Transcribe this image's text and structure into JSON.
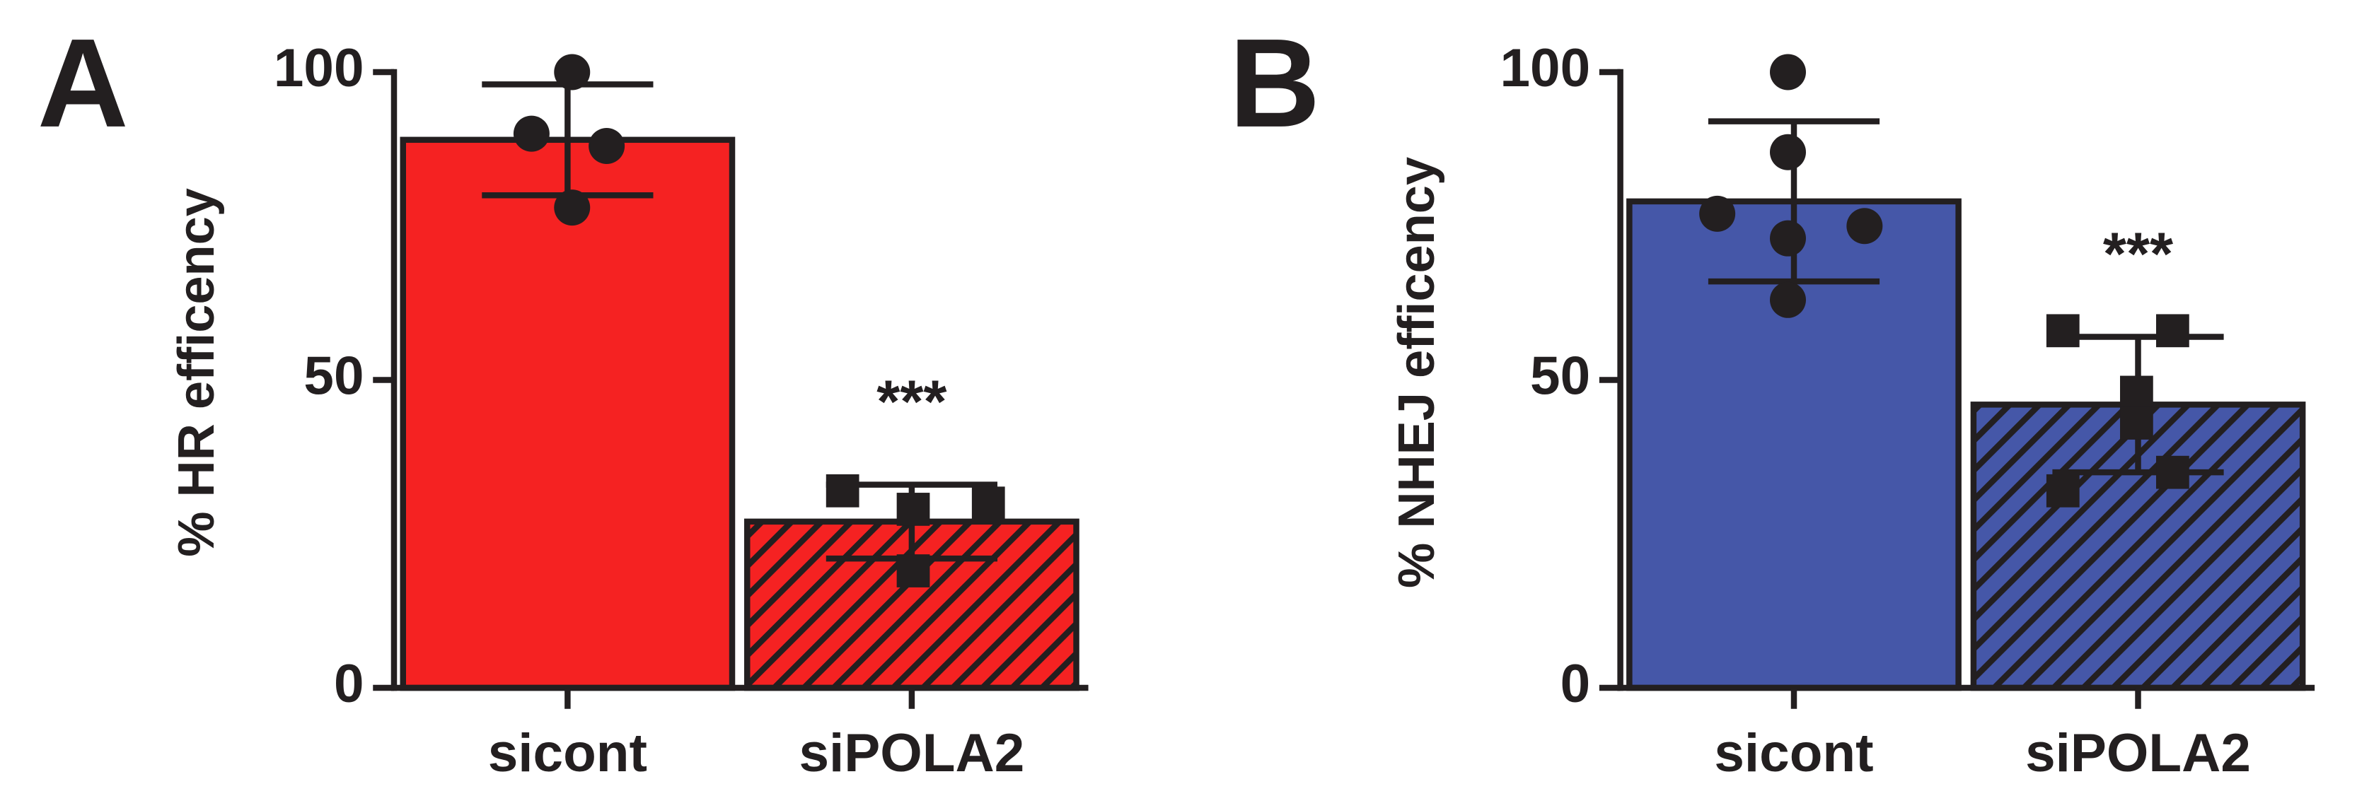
{
  "chart_data": [
    {
      "type": "bar",
      "panel_label": "A",
      "ylabel": "% HR efficency",
      "categories": [
        "sicont",
        "siPOLA2"
      ],
      "values": [
        89,
        27
      ],
      "errors": [
        9,
        6
      ],
      "points": [
        [
          100,
          90,
          88,
          78
        ],
        [
          32,
          29,
          30,
          19
        ]
      ],
      "markers": [
        "circle",
        "square"
      ],
      "hatch": [
        false,
        true
      ],
      "color": "#f52222",
      "ylim": [
        0,
        100
      ],
      "yticks": [
        0,
        50,
        100
      ],
      "annotations": [
        {
          "text": "***",
          "category": "siPOLA2"
        }
      ]
    },
    {
      "type": "bar",
      "panel_label": "B",
      "ylabel": "% NHEJ efficency",
      "categories": [
        "sicont",
        "siPOLA2"
      ],
      "values": [
        79,
        46
      ],
      "errors": [
        13,
        11
      ],
      "points": [
        [
          100,
          87,
          77,
          75,
          73,
          63
        ],
        [
          58,
          58,
          48,
          43,
          35,
          32
        ]
      ],
      "markers": [
        "circle",
        "square"
      ],
      "hatch": [
        false,
        true
      ],
      "color": "#4557a8",
      "ylim": [
        0,
        100
      ],
      "yticks": [
        0,
        50,
        100
      ],
      "annotations": [
        {
          "text": "***",
          "category": "siPOLA2"
        }
      ]
    }
  ]
}
